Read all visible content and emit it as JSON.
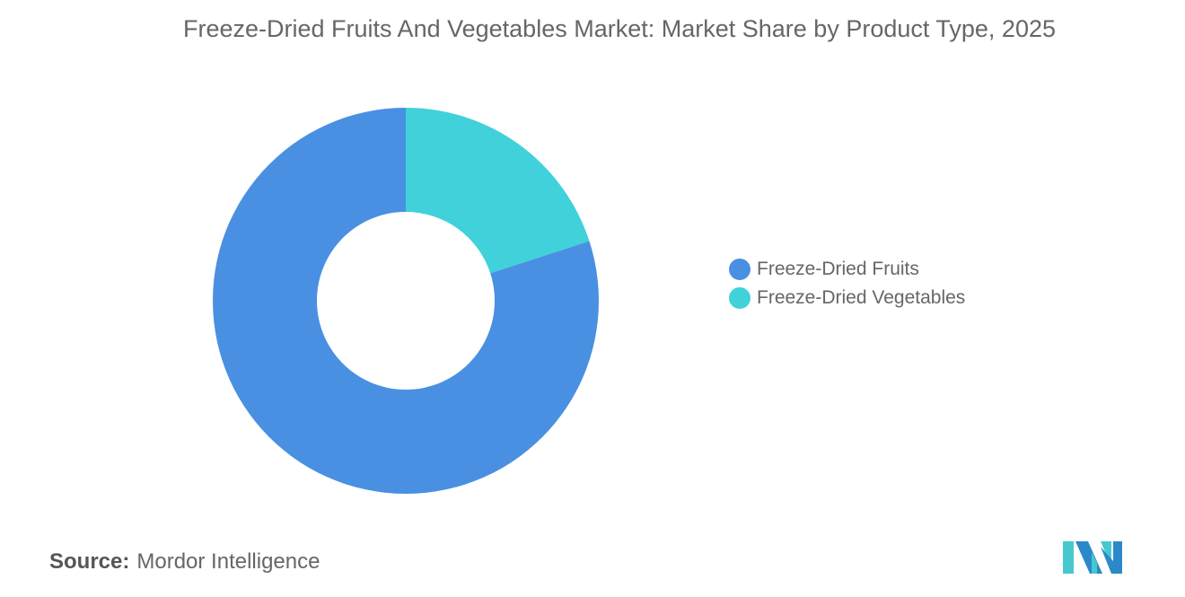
{
  "chart_data": {
    "type": "pie",
    "variant": "donut",
    "title": "Freeze-Dried Fruits And Vegetables Market: Market Share by Product Type, 2025",
    "categories": [
      "Freeze-Dried Fruits",
      "Freeze-Dried Vegetables"
    ],
    "values": [
      80,
      20
    ],
    "unit": "%",
    "colors": [
      "#4a90e2",
      "#40d1da"
    ],
    "legend_position": "right"
  },
  "source": {
    "label": "Source:",
    "value": "Mordor Intelligence"
  },
  "logo": {
    "text": "Mordor Intelligence",
    "colors": [
      "#2c89c9",
      "#45c9cf"
    ]
  }
}
